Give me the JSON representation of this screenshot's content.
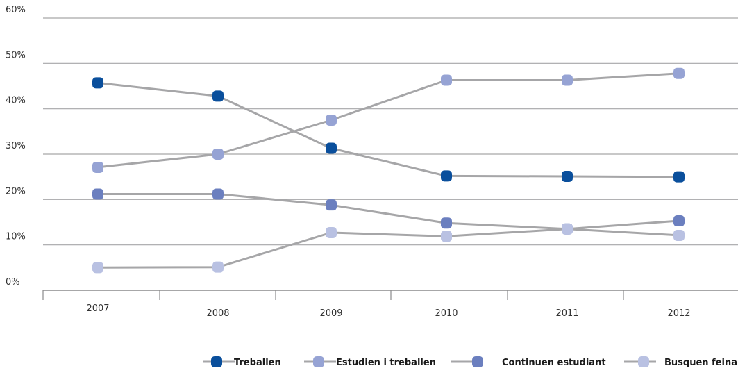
{
  "chart_data": {
    "type": "line",
    "title": "",
    "xlabel": "",
    "ylabel": "",
    "categories": [
      "2007",
      "2008",
      "2009",
      "2010",
      "2011",
      "2012"
    ],
    "ylim": [
      0,
      60
    ],
    "y_ticks": [
      "0%",
      "10%",
      "20%",
      "30%",
      "40%",
      "50%",
      "60%"
    ],
    "grid": true,
    "legend_position": "bottom",
    "line_color": "#a6a6a8",
    "series": [
      {
        "name": "Treballen",
        "color": "#0a4f9c",
        "values": [
          45.7,
          42.8,
          31.3,
          25.2,
          25.1,
          25.0
        ]
      },
      {
        "name": "Estudien i treballen",
        "color": "#96a3d4",
        "values": [
          27.1,
          30.0,
          37.5,
          46.3,
          46.3,
          47.8
        ]
      },
      {
        "name": "Continuen estudiant",
        "color": "#6b7fbf",
        "values": [
          21.2,
          21.2,
          18.8,
          14.8,
          13.5,
          15.3
        ]
      },
      {
        "name": "Busquen feina",
        "color": "#b9c1e2",
        "values": [
          5.0,
          5.1,
          12.7,
          11.9,
          13.5,
          12.1
        ]
      }
    ]
  }
}
